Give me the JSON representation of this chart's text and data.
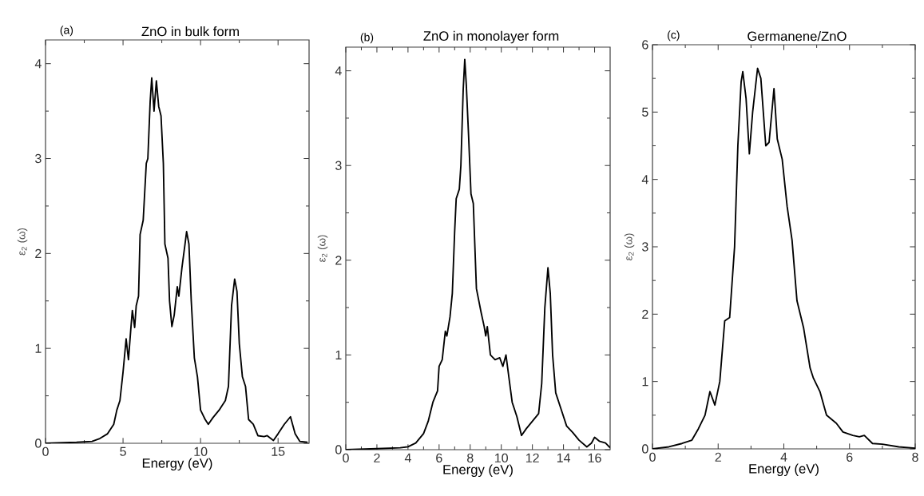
{
  "chart_data": [
    {
      "type": "line",
      "title": "ZnO in bulk form",
      "annotations": [
        "(a)"
      ],
      "xlabel": "Energy (eV)",
      "ylabel": "ε$_{2}$ (ω)",
      "xlim": [
        0,
        17
      ],
      "ylim": [
        0,
        4.25
      ],
      "xticks": [
        0,
        5,
        10,
        15
      ],
      "yticks": [
        0,
        1,
        2,
        3,
        4
      ],
      "x": [
        0,
        2,
        3,
        3.5,
        4,
        4.4,
        4.6,
        4.8,
        5.0,
        5.2,
        5.35,
        5.5,
        5.6,
        5.75,
        5.85,
        6.0,
        6.1,
        6.3,
        6.5,
        6.6,
        6.75,
        6.85,
        7.0,
        7.15,
        7.3,
        7.45,
        7.6,
        7.7,
        7.9,
        8.0,
        8.15,
        8.3,
        8.5,
        8.6,
        8.8,
        9.0,
        9.1,
        9.25,
        9.4,
        9.6,
        9.8,
        10.0,
        10.3,
        10.5,
        10.8,
        11.2,
        11.6,
        11.8,
        12.0,
        12.2,
        12.35,
        12.5,
        12.7,
        12.9,
        13.1,
        13.4,
        13.7,
        14.1,
        14.3,
        14.7,
        15.0,
        15.4,
        15.8,
        16.1,
        16.4,
        16.9
      ],
      "series": [
        {
          "color": "#000000",
          "values": [
            0,
            0.01,
            0.02,
            0.05,
            0.1,
            0.2,
            0.35,
            0.45,
            0.75,
            1.1,
            0.88,
            1.2,
            1.4,
            1.22,
            1.45,
            1.55,
            2.2,
            2.35,
            2.95,
            3.0,
            3.6,
            3.85,
            3.5,
            3.82,
            3.55,
            3.45,
            2.95,
            2.1,
            1.95,
            1.5,
            1.23,
            1.35,
            1.65,
            1.55,
            1.85,
            2.1,
            2.23,
            2.1,
            1.5,
            0.9,
            0.7,
            0.35,
            0.25,
            0.2,
            0.27,
            0.35,
            0.45,
            0.6,
            1.45,
            1.73,
            1.6,
            1.05,
            0.7,
            0.6,
            0.25,
            0.2,
            0.08,
            0.07,
            0.08,
            0.03,
            0.1,
            0.2,
            0.28,
            0.1,
            0.02,
            0.01
          ]
        }
      ]
    },
    {
      "type": "line",
      "title": "ZnO in monolayer form",
      "annotations": [
        "(b)"
      ],
      "xlabel": "Energy (eV)",
      "ylabel": "ε$_{2}$ (ω)",
      "xlim": [
        0,
        17
      ],
      "ylim": [
        0,
        4.25
      ],
      "xticks": [
        0,
        2,
        4,
        6,
        8,
        10,
        12,
        14,
        16
      ],
      "yticks": [
        0,
        1,
        2,
        3,
        4
      ],
      "x": [
        0,
        2,
        3.5,
        4,
        4.5,
        5,
        5.3,
        5.6,
        5.9,
        6.0,
        6.2,
        6.4,
        6.5,
        6.7,
        6.85,
        7.0,
        7.1,
        7.3,
        7.4,
        7.55,
        7.65,
        7.75,
        7.9,
        8.05,
        8.2,
        8.4,
        8.7,
        8.9,
        9.0,
        9.1,
        9.3,
        9.6,
        9.9,
        10.1,
        10.3,
        10.5,
        10.7,
        11.0,
        11.3,
        11.6,
        12.0,
        12.4,
        12.6,
        12.8,
        13.0,
        13.15,
        13.3,
        13.5,
        13.9,
        14.2,
        14.6,
        15.0,
        15.5,
        15.8,
        16.0,
        16.3,
        16.7,
        17.0
      ],
      "series": [
        {
          "color": "#000000",
          "values": [
            0,
            0.01,
            0.02,
            0.03,
            0.07,
            0.17,
            0.3,
            0.5,
            0.62,
            0.88,
            0.95,
            1.25,
            1.2,
            1.4,
            1.65,
            2.3,
            2.65,
            2.75,
            3.0,
            3.8,
            4.12,
            3.85,
            3.3,
            2.7,
            2.6,
            1.7,
            1.45,
            1.3,
            1.2,
            1.3,
            1.0,
            0.95,
            0.97,
            0.88,
            1.0,
            0.75,
            0.5,
            0.35,
            0.15,
            0.22,
            0.3,
            0.38,
            0.7,
            1.5,
            1.92,
            1.65,
            1.0,
            0.6,
            0.4,
            0.25,
            0.18,
            0.1,
            0.03,
            0.07,
            0.13,
            0.09,
            0.07,
            0.02
          ]
        }
      ]
    },
    {
      "type": "line",
      "title": "Germanene/ZnO",
      "annotations": [
        "(c)"
      ],
      "xlabel": "Energy (eV)",
      "ylabel": "ε$_{2}$ (ω)",
      "xlim": [
        0,
        8
      ],
      "ylim": [
        0,
        6
      ],
      "xticks": [
        0,
        2,
        4,
        6,
        8
      ],
      "yticks": [
        0,
        1,
        2,
        3,
        4,
        5,
        6
      ],
      "x": [
        0,
        0.5,
        0.9,
        1.2,
        1.4,
        1.6,
        1.75,
        1.9,
        2.05,
        2.2,
        2.35,
        2.5,
        2.6,
        2.7,
        2.75,
        2.85,
        2.95,
        3.05,
        3.2,
        3.3,
        3.45,
        3.55,
        3.7,
        3.8,
        3.95,
        4.1,
        4.25,
        4.4,
        4.6,
        4.8,
        4.9,
        5.1,
        5.3,
        5.6,
        5.8,
        6.1,
        6.3,
        6.45,
        6.7,
        7.0,
        7.5,
        8.0
      ],
      "series": [
        {
          "color": "#000000",
          "values": [
            0,
            0.03,
            0.08,
            0.13,
            0.3,
            0.5,
            0.85,
            0.65,
            1.0,
            1.9,
            1.95,
            3.0,
            4.5,
            5.45,
            5.6,
            5.2,
            4.38,
            5.0,
            5.65,
            5.5,
            4.5,
            4.55,
            5.35,
            4.6,
            4.3,
            3.6,
            3.1,
            2.2,
            1.8,
            1.2,
            1.05,
            0.85,
            0.5,
            0.38,
            0.25,
            0.2,
            0.18,
            0.2,
            0.08,
            0.07,
            0.03,
            0.01
          ]
        }
      ]
    }
  ]
}
